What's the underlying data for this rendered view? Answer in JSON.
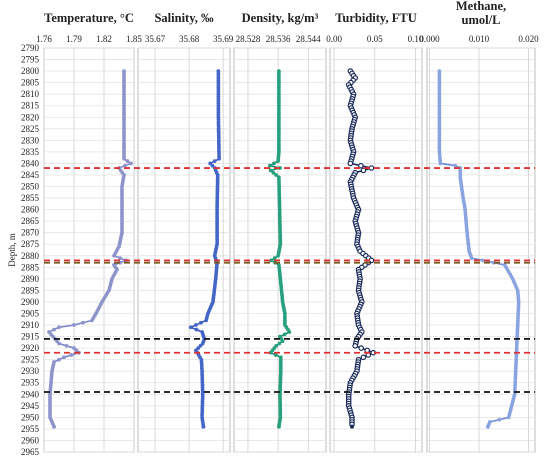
{
  "chart_data": {
    "type": "line",
    "y_axis": {
      "label": "Depth, m",
      "range": [
        2790,
        2965
      ],
      "reversed": true,
      "ticks": [
        2790,
        2795,
        2800,
        2805,
        2810,
        2815,
        2820,
        2825,
        2830,
        2835,
        2840,
        2845,
        2850,
        2855,
        2860,
        2865,
        2870,
        2875,
        2880,
        2885,
        2890,
        2895,
        2900,
        2905,
        2910,
        2915,
        2920,
        2925,
        2930,
        2935,
        2940,
        2945,
        2950,
        2955,
        2960,
        2965
      ]
    },
    "grid": true,
    "reference_lines": [
      {
        "depth": 2842,
        "color": "#e03030",
        "style": "dashed"
      },
      {
        "depth": 2882,
        "color": "#e03030",
        "style": "dashed"
      },
      {
        "depth": 2883,
        "color": "#7a5a20",
        "style": "dashed"
      },
      {
        "depth": 2916,
        "color": "#111111",
        "style": "dashed"
      },
      {
        "depth": 2922,
        "color": "#e03030",
        "style": "dashed"
      },
      {
        "depth": 2939,
        "color": "#111111",
        "style": "dashed"
      }
    ],
    "panels": [
      {
        "title_lines": [
          "Temperature, °C"
        ],
        "x_ticks": [
          "1.76",
          "1.79",
          "1.82",
          "1.85"
        ],
        "x_range": [
          1.76,
          1.85
        ],
        "color": "#7a86c6",
        "marker_color": "#8d94cc",
        "points": [
          [
            1.84,
            2800
          ],
          [
            1.84,
            2810
          ],
          [
            1.84,
            2820
          ],
          [
            1.84,
            2830
          ],
          [
            1.84,
            2838
          ],
          [
            1.847,
            2840
          ],
          [
            1.835,
            2842
          ],
          [
            1.84,
            2845
          ],
          [
            1.838,
            2850
          ],
          [
            1.838,
            2860
          ],
          [
            1.838,
            2870
          ],
          [
            1.835,
            2876
          ],
          [
            1.83,
            2880
          ],
          [
            1.842,
            2882
          ],
          [
            1.83,
            2884
          ],
          [
            1.833,
            2886
          ],
          [
            1.828,
            2890
          ],
          [
            1.825,
            2895
          ],
          [
            1.818,
            2900
          ],
          [
            1.812,
            2905
          ],
          [
            1.808,
            2908
          ],
          [
            1.79,
            2910
          ],
          [
            1.775,
            2911
          ],
          [
            1.765,
            2913
          ],
          [
            1.775,
            2918
          ],
          [
            1.79,
            2920
          ],
          [
            1.795,
            2922
          ],
          [
            1.78,
            2924
          ],
          [
            1.77,
            2926
          ],
          [
            1.768,
            2930
          ],
          [
            1.766,
            2940
          ],
          [
            1.766,
            2950
          ],
          [
            1.77,
            2954
          ]
        ]
      },
      {
        "title_lines": [
          "Salinity, ‰"
        ],
        "x_ticks": [
          "35.67",
          "35.68",
          "35.69"
        ],
        "x_range": [
          35.665,
          35.692
        ],
        "color": "#3a57bd",
        "marker_color": "#4466c8",
        "points": [
          [
            35.6886,
            2800
          ],
          [
            35.6886,
            2820
          ],
          [
            35.6888,
            2838
          ],
          [
            35.6862,
            2840
          ],
          [
            35.6875,
            2842
          ],
          [
            35.6884,
            2845
          ],
          [
            35.6882,
            2860
          ],
          [
            35.6882,
            2875
          ],
          [
            35.6875,
            2880
          ],
          [
            35.6882,
            2883
          ],
          [
            35.6878,
            2890
          ],
          [
            35.687,
            2900
          ],
          [
            35.6855,
            2905
          ],
          [
            35.685,
            2908
          ],
          [
            35.6805,
            2911
          ],
          [
            35.6838,
            2913
          ],
          [
            35.6845,
            2916
          ],
          [
            35.684,
            2918
          ],
          [
            35.682,
            2921
          ],
          [
            35.6836,
            2925
          ],
          [
            35.6838,
            2930
          ],
          [
            35.684,
            2940
          ],
          [
            35.6838,
            2950
          ],
          [
            35.6842,
            2954
          ]
        ]
      },
      {
        "title_lines": [
          "Density, kg/m³"
        ],
        "x_ticks": [
          "28.528",
          "28.536",
          "28.544"
        ],
        "x_range": [
          28.5243,
          28.5487
        ],
        "color": "#1a8e72",
        "marker_color": "#27a07e",
        "points": [
          [
            28.5362,
            2800
          ],
          [
            28.5362,
            2835
          ],
          [
            28.536,
            2839
          ],
          [
            28.5338,
            2841
          ],
          [
            28.5365,
            2842
          ],
          [
            28.534,
            2843
          ],
          [
            28.5362,
            2846
          ],
          [
            28.5364,
            2860
          ],
          [
            28.5366,
            2875
          ],
          [
            28.536,
            2880
          ],
          [
            28.5342,
            2882
          ],
          [
            28.5362,
            2884
          ],
          [
            28.5366,
            2890
          ],
          [
            28.5372,
            2900
          ],
          [
            28.5378,
            2905
          ],
          [
            28.5378,
            2910
          ],
          [
            28.539,
            2913
          ],
          [
            28.5365,
            2915
          ],
          [
            28.5372,
            2917
          ],
          [
            28.5355,
            2919
          ],
          [
            28.534,
            2922
          ],
          [
            28.5367,
            2924
          ],
          [
            28.5367,
            2930
          ],
          [
            28.5365,
            2940
          ],
          [
            28.5366,
            2950
          ],
          [
            28.5362,
            2954
          ]
        ]
      },
      {
        "title_lines": [
          "Turbidity, FTU"
        ],
        "x_ticks": [
          "0.00",
          "0.05",
          "0.10"
        ],
        "x_range": [
          -0.005,
          0.108
        ],
        "color": "#1b2a5a",
        "marker_color": "#1b2a5a",
        "points": [
          [
            0.02,
            2800
          ],
          [
            0.026,
            2803
          ],
          [
            0.018,
            2806
          ],
          [
            0.024,
            2810
          ],
          [
            0.02,
            2815
          ],
          [
            0.026,
            2820
          ],
          [
            0.022,
            2825
          ],
          [
            0.02,
            2830
          ],
          [
            0.024,
            2835
          ],
          [
            0.02,
            2840
          ],
          [
            0.046,
            2842
          ],
          [
            0.026,
            2844
          ],
          [
            0.02,
            2848
          ],
          [
            0.024,
            2855
          ],
          [
            0.03,
            2860
          ],
          [
            0.026,
            2865
          ],
          [
            0.03,
            2870
          ],
          [
            0.028,
            2875
          ],
          [
            0.032,
            2878
          ],
          [
            0.046,
            2882
          ],
          [
            0.03,
            2886
          ],
          [
            0.032,
            2890
          ],
          [
            0.03,
            2895
          ],
          [
            0.034,
            2900
          ],
          [
            0.028,
            2905
          ],
          [
            0.03,
            2910
          ],
          [
            0.034,
            2913
          ],
          [
            0.028,
            2916
          ],
          [
            0.026,
            2919
          ],
          [
            0.048,
            2922
          ],
          [
            0.03,
            2925
          ],
          [
            0.028,
            2930
          ],
          [
            0.02,
            2935
          ],
          [
            0.018,
            2940
          ],
          [
            0.018,
            2945
          ],
          [
            0.022,
            2950
          ],
          [
            0.022,
            2954
          ]
        ]
      },
      {
        "title_lines": [
          "Methane,",
          "umol/L"
        ],
        "x_ticks": [
          "0.000",
          "0.010",
          "0.020"
        ],
        "x_range": [
          -0.0005,
          0.0213
        ],
        "color": "#6a8ad8",
        "marker_color": "#8aa4e2",
        "points": [
          [
            0.002,
            2800
          ],
          [
            0.002,
            2820
          ],
          [
            0.002,
            2835
          ],
          [
            0.0022,
            2840
          ],
          [
            0.0052,
            2841
          ],
          [
            0.0062,
            2842
          ],
          [
            0.0062,
            2846
          ],
          [
            0.0068,
            2855
          ],
          [
            0.0072,
            2860
          ],
          [
            0.0076,
            2870
          ],
          [
            0.008,
            2878
          ],
          [
            0.0085,
            2881
          ],
          [
            0.0152,
            2884
          ],
          [
            0.0168,
            2890
          ],
          [
            0.0178,
            2895
          ],
          [
            0.018,
            2900
          ],
          [
            0.0178,
            2910
          ],
          [
            0.0176,
            2920
          ],
          [
            0.0174,
            2930
          ],
          [
            0.0172,
            2940
          ],
          [
            0.016,
            2950
          ],
          [
            0.0122,
            2952
          ],
          [
            0.0118,
            2954
          ]
        ]
      }
    ]
  }
}
